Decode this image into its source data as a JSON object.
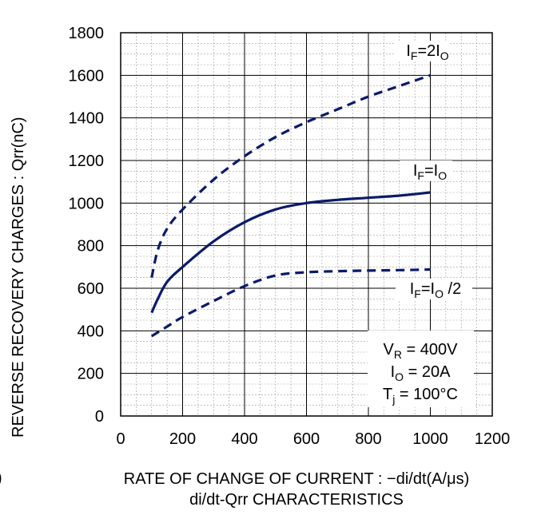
{
  "chart_data": {
    "type": "line",
    "title": "di/dt-Qrr CHARACTERISTICS",
    "xlabel": "RATE OF CHANGE OF CURRENT : −di/dt(A/μs)",
    "ylabel": "REVERSE RECOVERY  CHARGES : Qrr(nC)",
    "xlim": [
      0,
      1200
    ],
    "ylim": [
      0,
      1800
    ],
    "x_ticks": [
      0,
      200,
      400,
      600,
      800,
      1000,
      1200
    ],
    "y_ticks": [
      0,
      200,
      400,
      600,
      800,
      1000,
      1200,
      1400,
      1600,
      1800
    ],
    "grid": true,
    "series": [
      {
        "name": "IF=2IO",
        "label_main": "I",
        "label_sub1": "F",
        "label_mid": "=2I",
        "label_sub2": "O",
        "label_tail": "",
        "style": "dashed",
        "x": [
          100,
          120,
          150,
          200,
          300,
          400,
          500,
          600,
          700,
          800,
          900,
          1000
        ],
        "y": [
          650,
          780,
          880,
          970,
          1110,
          1220,
          1310,
          1380,
          1440,
          1500,
          1550,
          1600
        ]
      },
      {
        "name": "IF=IO",
        "label_main": "I",
        "label_sub1": "F",
        "label_mid": "=I",
        "label_sub2": "O",
        "label_tail": "",
        "style": "solid",
        "x": [
          100,
          120,
          150,
          200,
          300,
          400,
          500,
          600,
          700,
          800,
          900,
          1000
        ],
        "y": [
          485,
          550,
          630,
          700,
          820,
          910,
          970,
          1000,
          1015,
          1025,
          1035,
          1050
        ]
      },
      {
        "name": "IF=IO /2",
        "label_main": "I",
        "label_sub1": "F",
        "label_mid": "=I",
        "label_sub2": "O",
        "label_tail": " /2",
        "style": "dashed",
        "x": [
          100,
          150,
          200,
          300,
          400,
          500,
          600,
          700,
          800,
          900,
          1000
        ],
        "y": [
          375,
          420,
          465,
          540,
          610,
          660,
          675,
          680,
          683,
          685,
          688
        ]
      }
    ],
    "conditions": [
      {
        "main": "V",
        "sub": "R",
        "rest": " = 400V"
      },
      {
        "main": "I",
        "sub": "O",
        "rest": " = 20A"
      },
      {
        "main": "T",
        "sub": "j",
        "rest": " = 100°C"
      }
    ],
    "color": "#0a1a6b"
  },
  "stray_mark": ")"
}
